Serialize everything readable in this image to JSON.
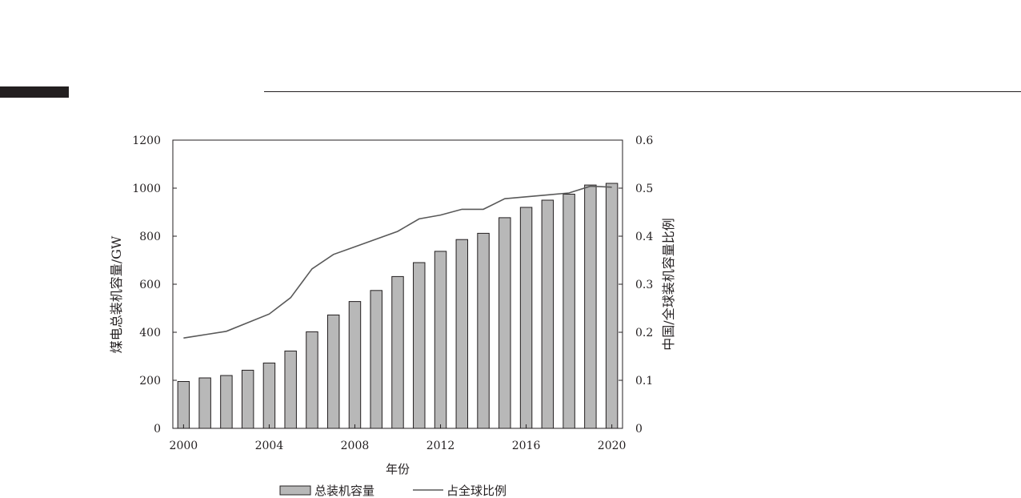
{
  "chart_data": {
    "type": "bar",
    "x": [
      2000,
      2001,
      2002,
      2003,
      2004,
      2005,
      2006,
      2007,
      2008,
      2009,
      2010,
      2011,
      2012,
      2013,
      2014,
      2015,
      2016,
      2017,
      2018,
      2019,
      2020
    ],
    "series": [
      {
        "name": "总装机容量",
        "type": "bar",
        "axis": "left",
        "color": "#b8b8b8",
        "values": [
          195,
          210,
          220,
          242,
          272,
          322,
          402,
          472,
          528,
          574,
          632,
          690,
          737,
          786,
          812,
          877,
          920,
          950,
          975,
          1013,
          1020
        ]
      },
      {
        "name": "占全球比例",
        "type": "line",
        "axis": "right",
        "color": "#595959",
        "values": [
          0.188,
          0.195,
          0.202,
          0.22,
          0.238,
          0.272,
          0.332,
          0.362,
          0.378,
          0.394,
          0.41,
          0.436,
          0.444,
          0.456,
          0.456,
          0.478,
          0.482,
          0.486,
          0.49,
          0.504,
          0.502
        ]
      }
    ],
    "xlabel": "年份",
    "ylabel": "煤电总装机容量/GW",
    "y2label": "中国/全球装机容量比例",
    "xlim": [
      1999.5,
      2020.5
    ],
    "xticks": [
      "2000",
      "2004",
      "2008",
      "2012",
      "2016",
      "2020"
    ],
    "ylim": [
      0,
      1200
    ],
    "yticks": [
      "0",
      "200",
      "400",
      "600",
      "800",
      "1000",
      "1200"
    ],
    "y2lim": [
      0,
      0.6
    ],
    "y2ticks": [
      "0",
      "0.1",
      "0.2",
      "0.3",
      "0.4",
      "0.5",
      "0.6"
    ],
    "grid": false,
    "legend_position": "bottom"
  }
}
